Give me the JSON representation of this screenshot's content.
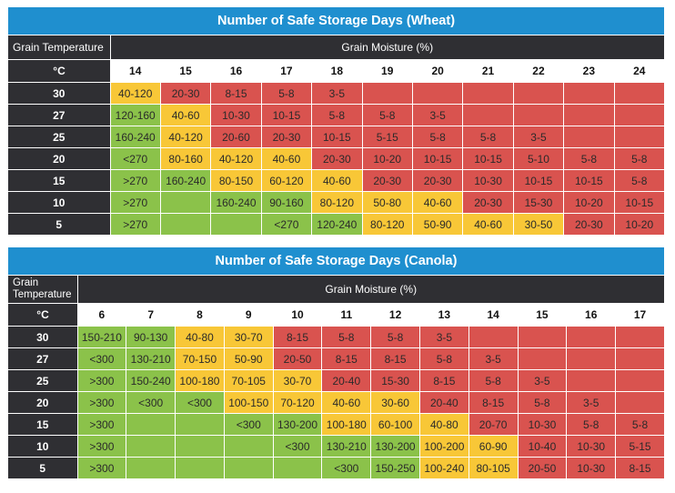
{
  "colors": {
    "title_bg": "#1f8fcf",
    "header_bg": "#2f2f33",
    "safe": "#8bc24a",
    "caution": "#f8c737",
    "danger": "#d9534f"
  },
  "wheat": {
    "title": "Number of Safe Storage Days (Wheat)",
    "temp_header": "Grain Temperature",
    "moisture_header": "Grain Moisture (%)",
    "unit": "°C",
    "moistures": [
      "14",
      "15",
      "16",
      "17",
      "18",
      "19",
      "20",
      "21",
      "22",
      "23",
      "24"
    ],
    "rows": [
      {
        "temp": "30",
        "cells": [
          {
            "v": "40-120",
            "c": "y"
          },
          {
            "v": "20-30",
            "c": "r"
          },
          {
            "v": "8-15",
            "c": "r"
          },
          {
            "v": "5-8",
            "c": "r"
          },
          {
            "v": "3-5",
            "c": "r"
          },
          {
            "v": "",
            "c": "r"
          },
          {
            "v": "",
            "c": "r"
          },
          {
            "v": "",
            "c": "r"
          },
          {
            "v": "",
            "c": "r"
          },
          {
            "v": "",
            "c": "r"
          },
          {
            "v": "",
            "c": "r"
          }
        ]
      },
      {
        "temp": "27",
        "cells": [
          {
            "v": "120-160",
            "c": "g"
          },
          {
            "v": "40-60",
            "c": "y"
          },
          {
            "v": "10-30",
            "c": "r"
          },
          {
            "v": "10-15",
            "c": "r"
          },
          {
            "v": "5-8",
            "c": "r"
          },
          {
            "v": "5-8",
            "c": "r"
          },
          {
            "v": "3-5",
            "c": "r"
          },
          {
            "v": "",
            "c": "r"
          },
          {
            "v": "",
            "c": "r"
          },
          {
            "v": "",
            "c": "r"
          },
          {
            "v": "",
            "c": "r"
          }
        ]
      },
      {
        "temp": "25",
        "cells": [
          {
            "v": "160-240",
            "c": "g"
          },
          {
            "v": "40-120",
            "c": "y"
          },
          {
            "v": "20-60",
            "c": "r"
          },
          {
            "v": "20-30",
            "c": "r"
          },
          {
            "v": "10-15",
            "c": "r"
          },
          {
            "v": "5-15",
            "c": "r"
          },
          {
            "v": "5-8",
            "c": "r"
          },
          {
            "v": "5-8",
            "c": "r"
          },
          {
            "v": "3-5",
            "c": "r"
          },
          {
            "v": "",
            "c": "r"
          },
          {
            "v": "",
            "c": "r"
          }
        ]
      },
      {
        "temp": "20",
        "cells": [
          {
            "v": "<270",
            "c": "g"
          },
          {
            "v": "80-160",
            "c": "y"
          },
          {
            "v": "40-120",
            "c": "y"
          },
          {
            "v": "40-60",
            "c": "y"
          },
          {
            "v": "20-30",
            "c": "r"
          },
          {
            "v": "10-20",
            "c": "r"
          },
          {
            "v": "10-15",
            "c": "r"
          },
          {
            "v": "10-15",
            "c": "r"
          },
          {
            "v": "5-10",
            "c": "r"
          },
          {
            "v": "5-8",
            "c": "r"
          },
          {
            "v": "5-8",
            "c": "r"
          }
        ]
      },
      {
        "temp": "15",
        "cells": [
          {
            "v": ">270",
            "c": "g"
          },
          {
            "v": "160-240",
            "c": "g"
          },
          {
            "v": "80-150",
            "c": "y"
          },
          {
            "v": "60-120",
            "c": "y"
          },
          {
            "v": "40-60",
            "c": "y"
          },
          {
            "v": "20-30",
            "c": "r"
          },
          {
            "v": "20-30",
            "c": "r"
          },
          {
            "v": "10-30",
            "c": "r"
          },
          {
            "v": "10-15",
            "c": "r"
          },
          {
            "v": "10-15",
            "c": "r"
          },
          {
            "v": "5-8",
            "c": "r"
          }
        ]
      },
      {
        "temp": "10",
        "cells": [
          {
            "v": ">270",
            "c": "g"
          },
          {
            "v": "",
            "c": "g"
          },
          {
            "v": "160-240",
            "c": "g"
          },
          {
            "v": "90-160",
            "c": "g"
          },
          {
            "v": "80-120",
            "c": "y"
          },
          {
            "v": "50-80",
            "c": "y"
          },
          {
            "v": "40-60",
            "c": "y"
          },
          {
            "v": "20-30",
            "c": "r"
          },
          {
            "v": "15-30",
            "c": "r"
          },
          {
            "v": "10-20",
            "c": "r"
          },
          {
            "v": "10-15",
            "c": "r"
          }
        ]
      },
      {
        "temp": "5",
        "cells": [
          {
            "v": ">270",
            "c": "g"
          },
          {
            "v": "",
            "c": "g"
          },
          {
            "v": "",
            "c": "g"
          },
          {
            "v": "<270",
            "c": "g"
          },
          {
            "v": "120-240",
            "c": "g"
          },
          {
            "v": "80-120",
            "c": "y"
          },
          {
            "v": "50-90",
            "c": "y"
          },
          {
            "v": "40-60",
            "c": "y"
          },
          {
            "v": "30-50",
            "c": "y"
          },
          {
            "v": "20-30",
            "c": "r"
          },
          {
            "v": "10-20",
            "c": "r"
          }
        ]
      }
    ]
  },
  "canola": {
    "title": "Number of Safe Storage Days (Canola)",
    "temp_header": "Grain Temperature",
    "moisture_header": "Grain Moisture (%)",
    "unit": "°C",
    "moistures": [
      "6",
      "7",
      "8",
      "9",
      "10",
      "11",
      "12",
      "13",
      "14",
      "15",
      "16",
      "17"
    ],
    "rows": [
      {
        "temp": "30",
        "cells": [
          {
            "v": "150-210",
            "c": "g"
          },
          {
            "v": "90-130",
            "c": "g"
          },
          {
            "v": "40-80",
            "c": "y"
          },
          {
            "v": "30-70",
            "c": "y"
          },
          {
            "v": "8-15",
            "c": "r"
          },
          {
            "v": "5-8",
            "c": "r"
          },
          {
            "v": "5-8",
            "c": "r"
          },
          {
            "v": "3-5",
            "c": "r"
          },
          {
            "v": "",
            "c": "r"
          },
          {
            "v": "",
            "c": "r"
          },
          {
            "v": "",
            "c": "r"
          },
          {
            "v": "",
            "c": "r"
          }
        ]
      },
      {
        "temp": "27",
        "cells": [
          {
            "v": "<300",
            "c": "g"
          },
          {
            "v": "130-210",
            "c": "g"
          },
          {
            "v": "70-150",
            "c": "y"
          },
          {
            "v": "50-90",
            "c": "y"
          },
          {
            "v": "20-50",
            "c": "r"
          },
          {
            "v": "8-15",
            "c": "r"
          },
          {
            "v": "8-15",
            "c": "r"
          },
          {
            "v": "5-8",
            "c": "r"
          },
          {
            "v": "3-5",
            "c": "r"
          },
          {
            "v": "",
            "c": "r"
          },
          {
            "v": "",
            "c": "r"
          },
          {
            "v": "",
            "c": "r"
          }
        ]
      },
      {
        "temp": "25",
        "cells": [
          {
            "v": ">300",
            "c": "g"
          },
          {
            "v": "150-240",
            "c": "g"
          },
          {
            "v": "100-180",
            "c": "y"
          },
          {
            "v": "70-105",
            "c": "y"
          },
          {
            "v": "30-70",
            "c": "y"
          },
          {
            "v": "20-40",
            "c": "r"
          },
          {
            "v": "15-30",
            "c": "r"
          },
          {
            "v": "8-15",
            "c": "r"
          },
          {
            "v": "5-8",
            "c": "r"
          },
          {
            "v": "3-5",
            "c": "r"
          },
          {
            "v": "",
            "c": "r"
          },
          {
            "v": "",
            "c": "r"
          }
        ]
      },
      {
        "temp": "20",
        "cells": [
          {
            "v": ">300",
            "c": "g"
          },
          {
            "v": "<300",
            "c": "g"
          },
          {
            "v": "<300",
            "c": "g"
          },
          {
            "v": "100-150",
            "c": "y"
          },
          {
            "v": "70-120",
            "c": "y"
          },
          {
            "v": "40-60",
            "c": "y"
          },
          {
            "v": "30-60",
            "c": "y"
          },
          {
            "v": "20-40",
            "c": "r"
          },
          {
            "v": "8-15",
            "c": "r"
          },
          {
            "v": "5-8",
            "c": "r"
          },
          {
            "v": "3-5",
            "c": "r"
          },
          {
            "v": "",
            "c": "r"
          }
        ]
      },
      {
        "temp": "15",
        "cells": [
          {
            "v": ">300",
            "c": "g"
          },
          {
            "v": "",
            "c": "g"
          },
          {
            "v": "",
            "c": "g"
          },
          {
            "v": "<300",
            "c": "g"
          },
          {
            "v": "130-200",
            "c": "g"
          },
          {
            "v": "100-180",
            "c": "y"
          },
          {
            "v": "60-100",
            "c": "y"
          },
          {
            "v": "40-80",
            "c": "y"
          },
          {
            "v": "20-70",
            "c": "r"
          },
          {
            "v": "10-30",
            "c": "r"
          },
          {
            "v": "5-8",
            "c": "r"
          },
          {
            "v": "5-8",
            "c": "r"
          }
        ]
      },
      {
        "temp": "10",
        "cells": [
          {
            "v": ">300",
            "c": "g"
          },
          {
            "v": "",
            "c": "g"
          },
          {
            "v": "",
            "c": "g"
          },
          {
            "v": "",
            "c": "g"
          },
          {
            "v": "<300",
            "c": "g"
          },
          {
            "v": "130-210",
            "c": "g"
          },
          {
            "v": "130-200",
            "c": "g"
          },
          {
            "v": "100-200",
            "c": "y"
          },
          {
            "v": "60-90",
            "c": "y"
          },
          {
            "v": "10-40",
            "c": "r"
          },
          {
            "v": "10-30",
            "c": "r"
          },
          {
            "v": "5-15",
            "c": "r"
          }
        ]
      },
      {
        "temp": "5",
        "cells": [
          {
            "v": ">300",
            "c": "g"
          },
          {
            "v": "",
            "c": "g"
          },
          {
            "v": "",
            "c": "g"
          },
          {
            "v": "",
            "c": "g"
          },
          {
            "v": "",
            "c": "g"
          },
          {
            "v": "<300",
            "c": "g"
          },
          {
            "v": "150-250",
            "c": "g"
          },
          {
            "v": "100-240",
            "c": "y"
          },
          {
            "v": "80-105",
            "c": "y"
          },
          {
            "v": "20-50",
            "c": "r"
          },
          {
            "v": "10-30",
            "c": "r"
          },
          {
            "v": "8-15",
            "c": "r"
          }
        ]
      }
    ]
  }
}
